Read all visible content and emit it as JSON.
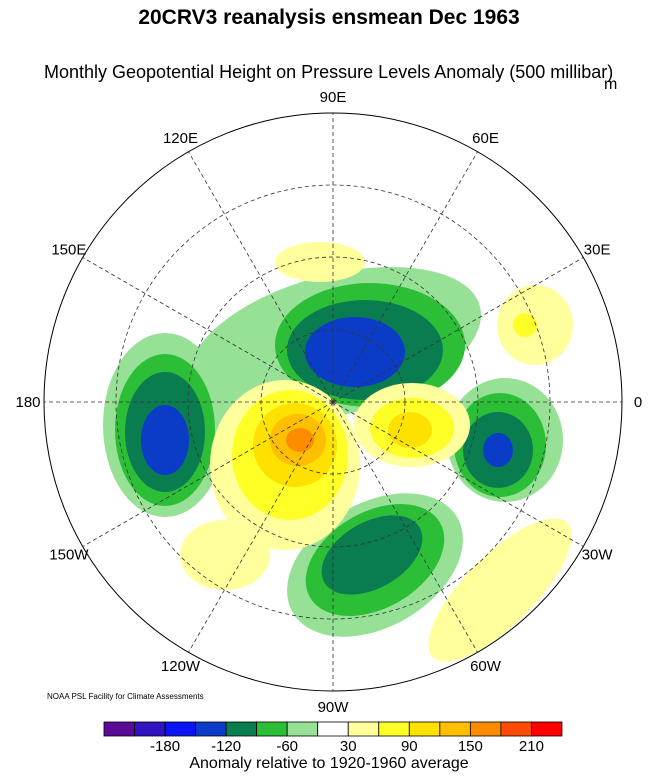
{
  "title": "20CRV3 reanalysis ensmean Dec 1963",
  "subtitle": "Monthly Geopotential Height on Pressure Levels Anomaly (500 millibar)",
  "units": "m",
  "credit": "NOAA PSL Facility for Climate Assessments",
  "map": {
    "projection": "north polar stereographic",
    "longitude_labels": [
      "90E",
      "60E",
      "30E",
      "0",
      "30W",
      "60W",
      "90W",
      "120W",
      "150W",
      "180",
      "150E",
      "120E"
    ]
  },
  "colorbar": {
    "title": "Anomaly relative to 1920-1960 average",
    "colors": [
      "#5a0a96",
      "#3214c3",
      "#0a14f5",
      "#0a3cc8",
      "#0a7d50",
      "#2dbe37",
      "#96e196",
      "#ffffff",
      "#ffff9b",
      "#ffff28",
      "#ffe100",
      "#ffbe00",
      "#ff8c00",
      "#ff4b00",
      "#ff0000"
    ],
    "labels": [
      "-180",
      "-120",
      "-60",
      "30",
      "90",
      "150",
      "210"
    ]
  }
}
